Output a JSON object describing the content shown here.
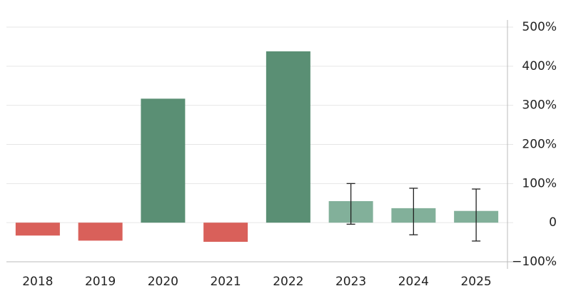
{
  "chart_data": {
    "type": "bar",
    "categories": [
      "2018",
      "2019",
      "2020",
      "2021",
      "2022",
      "2023",
      "2024",
      "2025"
    ],
    "values": [
      -33,
      -46,
      317,
      -49,
      438,
      55,
      37,
      30
    ],
    "error_lower": [
      null,
      null,
      null,
      null,
      null,
      -4,
      -31,
      -47
    ],
    "error_upper": [
      null,
      null,
      null,
      null,
      null,
      100,
      88,
      86
    ],
    "colors": [
      "#d9605a",
      "#d9605a",
      "#5a8f74",
      "#d9605a",
      "#5a8f74",
      "#82b09a",
      "#82b09a",
      "#82b09a"
    ],
    "ylim": [
      -100,
      500
    ],
    "yticks": [
      {
        "value": -100,
        "label": "−100%"
      },
      {
        "value": 0,
        "label": "0"
      },
      {
        "value": 100,
        "label": "100%"
      },
      {
        "value": 200,
        "label": "200%"
      },
      {
        "value": 300,
        "label": "300%"
      },
      {
        "value": 400,
        "label": "400%"
      },
      {
        "value": 500,
        "label": "500%"
      }
    ],
    "grid": true
  }
}
